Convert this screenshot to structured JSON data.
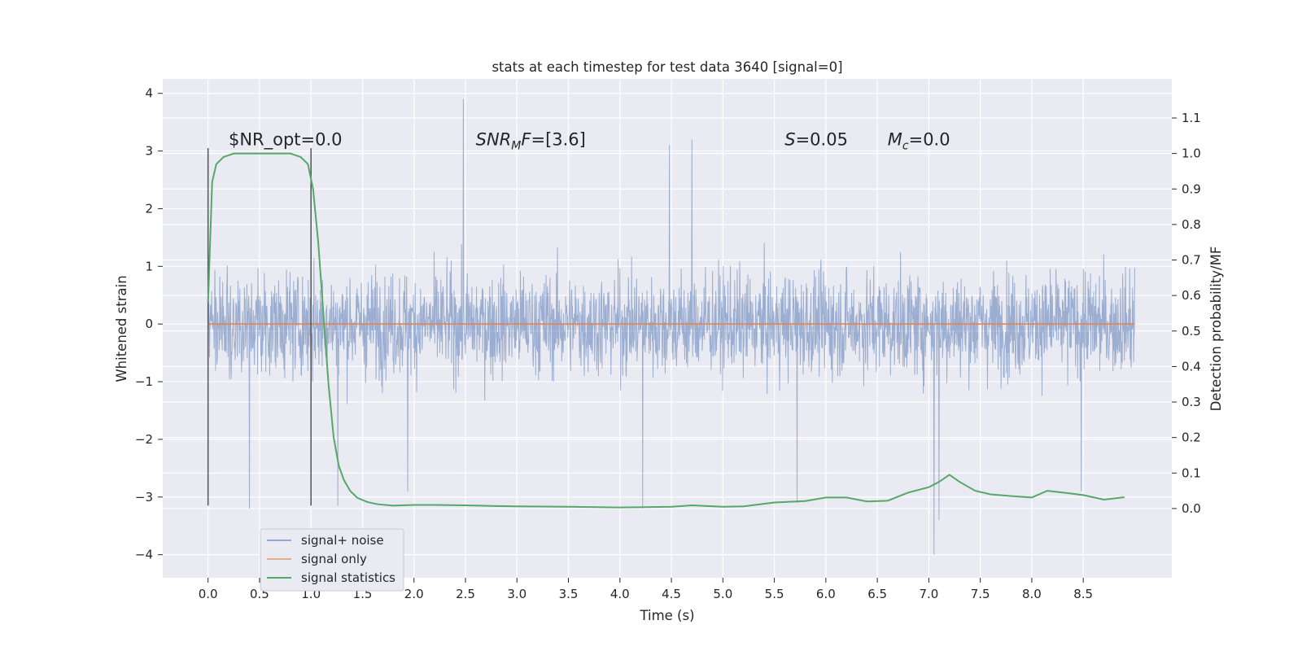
{
  "chart_data": {
    "type": "line",
    "title": "stats at each timestep for test data 3640 [signal=0]",
    "xlabel": "Time (s)",
    "ylabel": "Whitened strain",
    "y2label": "Detection probability/MF",
    "xlim": [
      -0.44,
      9.36
    ],
    "ylim": [
      -4.4,
      4.25
    ],
    "y2lim": [
      -0.195,
      1.21
    ],
    "xticks": [
      "0.0",
      "0.5",
      "1.0",
      "1.5",
      "2.0",
      "2.5",
      "3.0",
      "3.5",
      "4.0",
      "4.5",
      "5.0",
      "5.5",
      "6.0",
      "6.5",
      "7.0",
      "7.5",
      "8.0",
      "8.5"
    ],
    "yticks": [
      "4",
      "3",
      "2",
      "1",
      "0",
      "−1",
      "−2",
      "−3",
      "−4"
    ],
    "y2ticks": [
      "1.1",
      "1.0",
      "0.9",
      "0.8",
      "0.7",
      "0.6",
      "0.5",
      "0.4",
      "0.3",
      "0.2",
      "0.1",
      "0.0"
    ],
    "grid": true,
    "legend_position": "lower-left",
    "colors": {
      "plot_bg": "#eaeaf2",
      "grid": "#ffffff",
      "noise": "#4c72b0",
      "signal_only": "#dd8452",
      "statistics": "#55a868",
      "vline": "#555555"
    },
    "annotations": [
      {
        "text": "$NR_opt=0.0",
        "x": 0.2,
        "y": 3.1
      },
      {
        "text": "SNRMF=[3.6]",
        "x": 2.6,
        "y": 3.1,
        "math": "SNR_MF=[3.6]"
      },
      {
        "text": "S=0.05",
        "x": 5.6,
        "y": 3.1
      },
      {
        "text": "Mc=0.0",
        "x": 6.6,
        "y": 3.1
      }
    ],
    "vlines": [
      0.0,
      1.0
    ],
    "series": [
      {
        "name": "signal+ noise",
        "axis": "left",
        "x_range": [
          0.0,
          9.0
        ],
        "typical_range": [
          -1.5,
          1.8
        ],
        "envelope_typical": [
          -2.2,
          2.4
        ],
        "spikes": [
          {
            "x": 2.48,
            "y": 3.9
          },
          {
            "x": 4.7,
            "y": 3.2
          },
          {
            "x": 4.48,
            "y": 3.1
          },
          {
            "x": 7.05,
            "y": -4.0
          },
          {
            "x": 7.1,
            "y": -3.4
          },
          {
            "x": 4.22,
            "y": -3.2
          },
          {
            "x": 0.4,
            "y": -3.2
          },
          {
            "x": 1.26,
            "y": -3.15
          },
          {
            "x": 5.72,
            "y": -3.1
          },
          {
            "x": 8.48,
            "y": -2.9
          },
          {
            "x": 1.94,
            "y": -2.9
          }
        ]
      },
      {
        "name": "signal only",
        "axis": "left",
        "x": [
          0.0,
          9.0
        ],
        "y": [
          0.0,
          0.0
        ]
      },
      {
        "name": "signal statistics",
        "axis": "right",
        "x": [
          0.0,
          0.04,
          0.08,
          0.15,
          0.25,
          0.4,
          0.6,
          0.8,
          0.9,
          0.97,
          1.02,
          1.07,
          1.12,
          1.17,
          1.22,
          1.27,
          1.32,
          1.38,
          1.45,
          1.55,
          1.65,
          1.8,
          2.0,
          2.2,
          2.5,
          2.8,
          3.0,
          3.5,
          4.0,
          4.3,
          4.5,
          4.7,
          5.0,
          5.2,
          5.5,
          5.8,
          6.0,
          6.2,
          6.4,
          6.6,
          6.8,
          7.0,
          7.1,
          7.2,
          7.3,
          7.45,
          7.6,
          7.8,
          8.0,
          8.15,
          8.3,
          8.5,
          8.7,
          8.9
        ],
        "y": [
          0.58,
          0.92,
          0.97,
          0.99,
          1.0,
          1.0,
          1.0,
          1.0,
          0.99,
          0.97,
          0.9,
          0.75,
          0.55,
          0.35,
          0.2,
          0.12,
          0.08,
          0.05,
          0.03,
          0.018,
          0.012,
          0.008,
          0.01,
          0.01,
          0.009,
          0.007,
          0.006,
          0.005,
          0.003,
          0.004,
          0.005,
          0.009,
          0.005,
          0.006,
          0.017,
          0.021,
          0.031,
          0.031,
          0.02,
          0.022,
          0.045,
          0.06,
          0.075,
          0.095,
          0.075,
          0.05,
          0.04,
          0.035,
          0.031,
          0.05,
          0.045,
          0.038,
          0.025,
          0.032
        ]
      }
    ]
  }
}
